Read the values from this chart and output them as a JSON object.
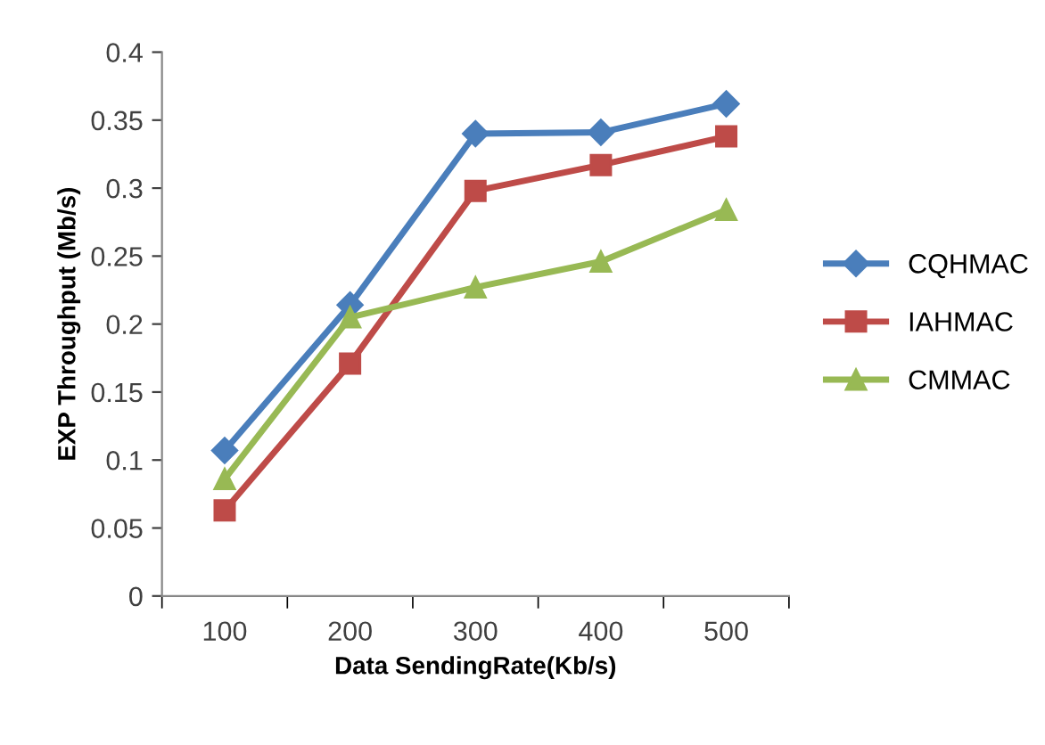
{
  "chart_data": {
    "type": "line",
    "xlabel": "Data SendingRate(Kb/s)",
    "ylabel": "EXP Throughput (Mb/s)",
    "categories": [
      "100",
      "200",
      "300",
      "400",
      "500"
    ],
    "ylim": [
      0,
      0.4
    ],
    "yticks": [
      0,
      0.05,
      0.1,
      0.15,
      0.2,
      0.25,
      0.3,
      0.35,
      0.4
    ],
    "grid": false,
    "legend": "right",
    "series": [
      {
        "name": "CQHMAC",
        "color": "#4a7ebb",
        "marker": "diamond",
        "values": [
          0.107,
          0.214,
          0.34,
          0.341,
          0.362
        ]
      },
      {
        "name": "IAHMAC",
        "color": "#be4b48",
        "marker": "square",
        "values": [
          0.063,
          0.171,
          0.298,
          0.317,
          0.338
        ]
      },
      {
        "name": "CMMAC",
        "color": "#98b954",
        "marker": "triangle",
        "values": [
          0.086,
          0.205,
          0.227,
          0.246,
          0.284
        ]
      }
    ]
  }
}
